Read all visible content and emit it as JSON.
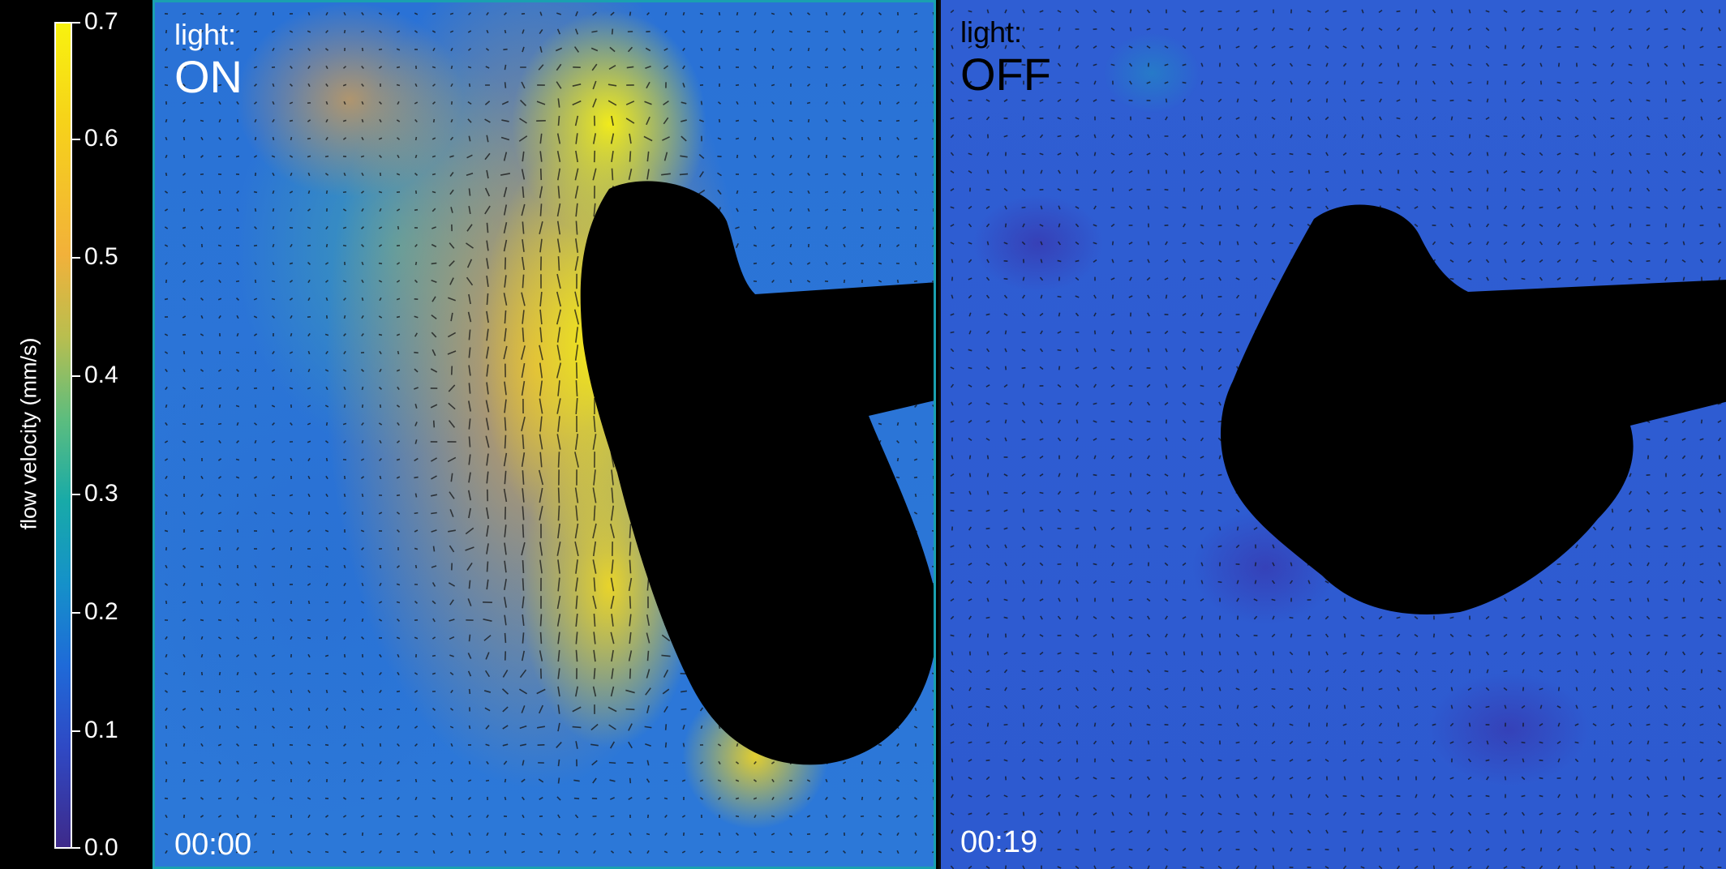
{
  "colorbar": {
    "title": "flow velocity (mm/s)",
    "ticks": [
      "0.7",
      "0.6",
      "0.5",
      "0.4",
      "0.3",
      "0.2",
      "0.1",
      "0.0"
    ]
  },
  "panels": [
    {
      "light_label": "light:",
      "state": "ON",
      "time": "00:00",
      "text_color": "#ffffff"
    },
    {
      "light_label": "light:",
      "state": "OFF",
      "time": "00:19",
      "text_color": "#000000"
    }
  ],
  "colors": {
    "low": "#3e2a8a",
    "mid": "#18aaa8",
    "high": "#f8f20f"
  }
}
